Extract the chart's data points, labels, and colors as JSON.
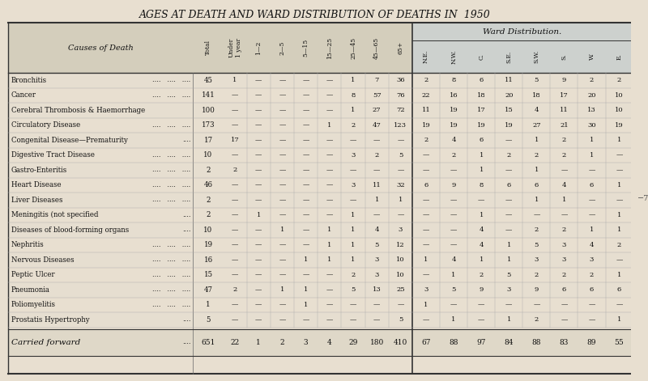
{
  "title": "AGES AT DEATH AND WARD DISTRIBUTION OF DEATHS IN  1950",
  "bg_color": "#e8dfd0",
  "cell_bg": "#ddd8cc",
  "ward_bg": "#cdd8e8",
  "text_color": "#1a1a1a",
  "line_color": "#444444",
  "col_header_label": "Causes of Death",
  "ward_dist_label": "Ward Distribution.",
  "age_headers": [
    "Total",
    "Under\n1 year",
    "1—2",
    "2—5",
    "5—15",
    "15—25",
    "25—45",
    "45—65",
    "65+"
  ],
  "ward_headers": [
    "N.E.",
    "N.W.",
    "C.",
    "S.E.",
    "S.W.",
    "S.",
    "W.",
    "E."
  ],
  "rows": [
    [
      "Bronchitis",
      "....",
      "....",
      "....",
      "45",
      "1",
      "—",
      "—",
      "—",
      "—",
      "1",
      "7",
      "36",
      "2",
      "8",
      "6",
      "11",
      "5",
      "9",
      "2",
      "2"
    ],
    [
      "Cancer",
      "....",
      "....",
      "....",
      "141",
      "—",
      "—",
      "—",
      "—",
      "—",
      "8",
      "57",
      "76",
      "22",
      "16",
      "18",
      "20",
      "18",
      "17",
      "20",
      "10"
    ],
    [
      "Cerebral Thrombosis & Haemorrhage",
      "",
      "",
      "",
      "100",
      "—",
      "—",
      "—",
      "—",
      "—",
      "1",
      "27",
      "72",
      "11",
      "19",
      "17",
      "15",
      "4",
      "11",
      "13",
      "10"
    ],
    [
      "Circulatory Disease",
      "....",
      "....",
      "....",
      "173",
      "—",
      "—",
      "—",
      "—",
      "1",
      "2",
      "47",
      "123",
      "19",
      "19",
      "19",
      "19",
      "27",
      "21",
      "30",
      "19"
    ],
    [
      "Congenital Disease—Prematurity",
      "....",
      "",
      "",
      "17",
      "17",
      "—",
      "—",
      "—",
      "—",
      "—",
      "—",
      "—",
      "2",
      "4",
      "6",
      "—",
      "1",
      "2",
      "1",
      "1"
    ],
    [
      "Digestive Tract Disease",
      "....",
      "....",
      "....",
      "10",
      "—",
      "—",
      "—",
      "—",
      "—",
      "3",
      "2",
      "5",
      "—",
      "2",
      "1",
      "2",
      "2",
      "2",
      "1",
      "—"
    ],
    [
      "Gastro-Enteritis",
      "....",
      "....",
      "....",
      "2",
      "2",
      "—",
      "—",
      "—",
      "—",
      "—",
      "—",
      "—",
      "—",
      "—",
      "1",
      "—",
      "1",
      "—",
      "—",
      "—"
    ],
    [
      "Heart Disease",
      "....",
      "....",
      "....",
      "46",
      "—",
      "—",
      "—",
      "—",
      "—",
      "3",
      "11",
      "32",
      "6",
      "9",
      "8",
      "6",
      "6",
      "4",
      "6",
      "1"
    ],
    [
      "Liver Diseases",
      "....",
      "....",
      "....",
      "2",
      "—",
      "—",
      "—",
      "—",
      "—",
      "—",
      "1",
      "1",
      "—",
      "—",
      "—",
      "—",
      "1",
      "1",
      "—",
      "—"
    ],
    [
      "Meningitis (not specified",
      "....",
      "",
      "",
      "2",
      "—",
      "1",
      "—",
      "—",
      "—",
      "1",
      "—",
      "—",
      "—",
      "—",
      "1",
      "—",
      "—",
      "—",
      "—",
      "1"
    ],
    [
      "Diseases of blood-forming organs",
      "....",
      "",
      "",
      "10",
      "—",
      "—",
      "1",
      "—",
      "1",
      "1",
      "4",
      "3",
      "—",
      "—",
      "4",
      "—",
      "2",
      "2",
      "1",
      "1"
    ],
    [
      "Nephritis",
      "....",
      "....",
      "....",
      "19",
      "—",
      "—",
      "—",
      "—",
      "1",
      "1",
      "5",
      "12",
      "—",
      "—",
      "4",
      "1",
      "5",
      "3",
      "4",
      "2"
    ],
    [
      "Nervous Diseases",
      "....",
      "....",
      "....",
      "16",
      "—",
      "—",
      "—",
      "1",
      "1",
      "1",
      "3",
      "10",
      "1",
      "4",
      "1",
      "1",
      "3",
      "3",
      "3",
      "—"
    ],
    [
      "Peptic Ulcer",
      "....",
      "....",
      "....",
      "15",
      "—",
      "—",
      "—",
      "—",
      "—",
      "2",
      "3",
      "10",
      "—",
      "1",
      "2",
      "5",
      "2",
      "2",
      "2",
      "1"
    ],
    [
      "Pneumonia",
      "....",
      "....",
      "....",
      "47",
      "2",
      "—",
      "1",
      "1",
      "—",
      "5",
      "13",
      "25",
      "3",
      "5",
      "9",
      "3",
      "9",
      "6",
      "6",
      "6"
    ],
    [
      "Poliomyelitis",
      "....",
      "....",
      "....",
      "1",
      "—",
      "—",
      "—",
      "1",
      "—",
      "—",
      "—",
      "—",
      "1",
      "—",
      "—",
      "—",
      "—",
      "—",
      "—",
      "—"
    ],
    [
      "Prostatis Hypertrophy",
      "....",
      "",
      "",
      "5",
      "—",
      "—",
      "—",
      "—",
      "—",
      "—",
      "—",
      "5",
      "—",
      "1",
      "—",
      "1",
      "2",
      "—",
      "—",
      "1"
    ]
  ],
  "footer_label": "Carried forward",
  "footer_dots": "....",
  "footer_vals": [
    "651",
    "22",
    "1",
    "2",
    "3",
    "4",
    "29",
    "180",
    "410",
    "67",
    "88",
    "97",
    "84",
    "88",
    "83",
    "89",
    "55"
  ],
  "side_label": "−7"
}
